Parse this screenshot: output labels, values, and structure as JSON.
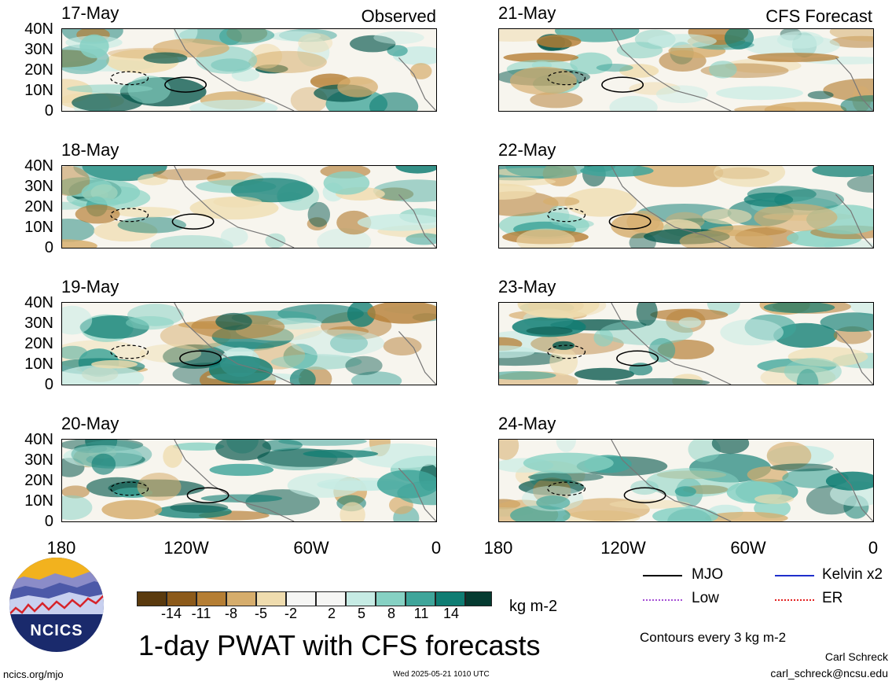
{
  "panels_left": [
    {
      "date": "17-May",
      "corner": "Observed"
    },
    {
      "date": "18-May",
      "corner": ""
    },
    {
      "date": "19-May",
      "corner": ""
    },
    {
      "date": "20-May",
      "corner": ""
    }
  ],
  "panels_right": [
    {
      "date": "21-May",
      "corner": "CFS Forecast"
    },
    {
      "date": "22-May",
      "corner": ""
    },
    {
      "date": "23-May",
      "corner": ""
    },
    {
      "date": "24-May",
      "corner": ""
    }
  ],
  "lat_ticks": [
    "40N",
    "30N",
    "20N",
    "10N",
    "0"
  ],
  "lon_ticks": [
    "180",
    "120W",
    "60W",
    "0"
  ],
  "colorbar": {
    "labels": [
      "-14",
      "-11",
      "-8",
      "-5",
      "-2",
      "2",
      "5",
      "8",
      "11",
      "14"
    ],
    "colors": [
      "#5a3a0e",
      "#8c5a1a",
      "#b57e34",
      "#d6ad6c",
      "#efdcae",
      "#f6f6f4",
      "#c6ebe4",
      "#86d1c3",
      "#3fa59a",
      "#0f7d73",
      "#0a5a4f",
      "#053b31"
    ],
    "units": "kg m-2"
  },
  "title": "1-day PWAT with CFS forecasts",
  "legend": {
    "items": [
      {
        "label": "MJO",
        "color": "#000000"
      },
      {
        "label": "Kelvin x2",
        "color": "#1f2fcc"
      },
      {
        "label": "Low",
        "color": "#a64fd6"
      },
      {
        "label": "ER",
        "color": "#e32222"
      }
    ],
    "contours_note": "Contours every 3 kg m-2"
  },
  "logo_text": "NCICS",
  "footer": {
    "url": "ncics.org/mjo",
    "timestamp": "Wed 2025-05-21 1010 UTC",
    "author": "Carl Schreck",
    "email": "carl_schreck@ncsu.edu"
  }
}
